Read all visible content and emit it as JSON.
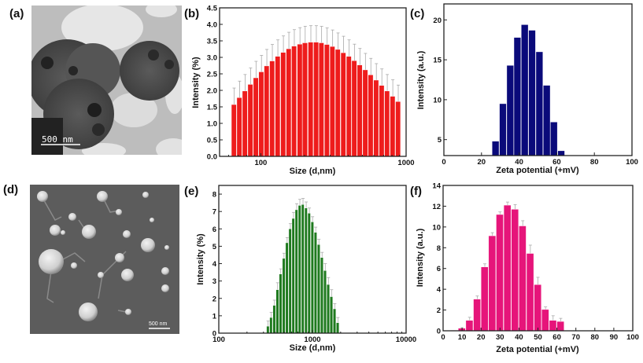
{
  "panel_labels": {
    "a": "(a)",
    "b": "(b)",
    "c": "(c)",
    "d": "(d)",
    "e": "(e)",
    "f": "(f)"
  },
  "images": {
    "a": {
      "kind": "TEM micrograph",
      "scale_bar": "500 nm"
    },
    "d": {
      "kind": "SEM micrograph",
      "scale_bar": "500 nm"
    }
  },
  "chart_data": [
    {
      "panel": "b",
      "type": "bar",
      "xlabel": "Size (d,nm)",
      "ylabel": "Intensity (%)",
      "xscale": "log",
      "xlim": [
        52,
        1000
      ],
      "ylim": [
        0,
        4.5
      ],
      "xticks": [
        100,
        1000
      ],
      "yticks": [
        0.0,
        0.5,
        1.0,
        1.5,
        2.0,
        2.5,
        3.0,
        3.5,
        4.0,
        4.5
      ],
      "color": "#ee1c1c",
      "x": [
        65.5,
        71.4,
        77.9,
        85.0,
        92.7,
        101,
        110,
        120,
        131,
        143,
        156,
        170,
        186,
        202,
        221,
        241,
        262,
        286,
        312,
        340,
        371,
        405,
        441,
        481,
        525,
        572,
        624,
        681,
        742,
        810,
        883
      ],
      "values": [
        1.57,
        1.78,
        1.98,
        2.18,
        2.38,
        2.56,
        2.74,
        2.89,
        3.03,
        3.15,
        3.26,
        3.34,
        3.4,
        3.44,
        3.46,
        3.46,
        3.44,
        3.39,
        3.33,
        3.24,
        3.14,
        3.03,
        2.9,
        2.77,
        2.62,
        2.47,
        2.31,
        2.15,
        1.98,
        1.82,
        1.66
      ],
      "errors": [
        0.5,
        0.5,
        0.5,
        0.5,
        0.5,
        0.5,
        0.5,
        0.5,
        0.5,
        0.5,
        0.5,
        0.5,
        0.5,
        0.5,
        0.5,
        0.5,
        0.5,
        0.5,
        0.5,
        0.5,
        0.5,
        0.5,
        0.5,
        0.5,
        0.5,
        0.5,
        0.5,
        0.5,
        0.5,
        0.5,
        0.5
      ]
    },
    {
      "panel": "c",
      "type": "bar",
      "xlabel": "Zeta potential (+mV)",
      "ylabel": "Intensity (a.u.)",
      "xlim": [
        0,
        100
      ],
      "ylim": [
        3,
        22
      ],
      "xticks": [
        0,
        20,
        40,
        60,
        80,
        100
      ],
      "yticks": [
        5,
        10,
        15,
        20
      ],
      "color": "#0a0a7a",
      "x": [
        27.6,
        31.5,
        35.4,
        39.2,
        43.1,
        47.0,
        50.9,
        54.8,
        58.6,
        62.5
      ],
      "values": [
        4.8,
        9.5,
        14.3,
        17.8,
        19.4,
        18.7,
        16.0,
        11.8,
        7.2,
        3.6
      ],
      "errors": []
    },
    {
      "panel": "e",
      "type": "bar",
      "xlabel": "Size (d,nm)",
      "ylabel": "Intensity (%)",
      "xscale": "log",
      "xlim": [
        100,
        10000
      ],
      "ylim": [
        0,
        8.5
      ],
      "xticks": [
        100,
        1000,
        10000
      ],
      "yticks": [
        0,
        1,
        2,
        3,
        4,
        5,
        6,
        7,
        8
      ],
      "color": "#1f7a1f",
      "x": [
        336,
        363,
        393,
        425,
        459,
        497,
        537,
        581,
        628,
        679,
        734,
        793,
        858,
        927,
        1003,
        1084,
        1172,
        1267,
        1370,
        1481,
        1601,
        1731,
        1870
      ],
      "values": [
        0.4,
        0.9,
        1.6,
        2.5,
        3.4,
        4.3,
        5.2,
        6.0,
        6.6,
        7.1,
        7.35,
        7.4,
        7.2,
        6.9,
        6.4,
        5.8,
        5.1,
        4.35,
        3.6,
        2.8,
        2.1,
        1.4,
        0.6
      ],
      "errors": [
        0.3,
        0.3,
        0.3,
        0.4,
        0.3,
        0.3,
        0.3,
        0.3,
        0.35,
        0.35,
        0.35,
        0.35,
        0.35,
        0.3,
        0.3,
        0.3,
        0.3,
        0.3,
        0.4,
        0.4,
        0.4,
        0.3,
        0.3
      ]
    },
    {
      "panel": "f",
      "type": "bar",
      "xlabel": "Zeta potential (+mV)",
      "ylabel": "Intensity (a.u.)",
      "xlim": [
        0,
        100
      ],
      "ylim": [
        0,
        14
      ],
      "xticks": [
        0,
        10,
        20,
        30,
        40,
        50,
        60,
        70,
        80,
        90,
        100
      ],
      "yticks": [
        0,
        2,
        4,
        6,
        8,
        10,
        12,
        14
      ],
      "color": "#e6157a",
      "x": [
        6,
        10,
        14,
        18,
        22,
        26,
        30,
        34,
        38,
        42,
        46,
        50,
        54,
        58,
        62
      ],
      "values": [
        0.05,
        0.25,
        1.0,
        3.05,
        6.15,
        9.15,
        11.2,
        12.1,
        11.7,
        10.1,
        7.45,
        4.45,
        2.05,
        1.0,
        0.9
      ],
      "errors": [
        0,
        0.05,
        0.3,
        0.3,
        0.3,
        0.3,
        0.25,
        0.3,
        0.45,
        0.5,
        0.8,
        0.7,
        0.25,
        0.45,
        0.3
      ]
    }
  ]
}
